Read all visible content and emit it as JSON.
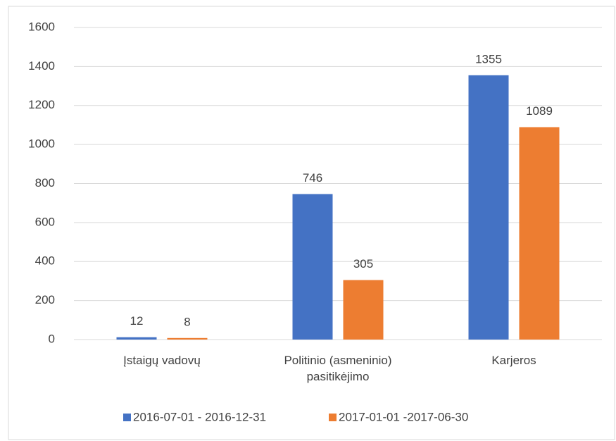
{
  "chart_data": {
    "type": "bar",
    "categories": [
      "Įstaigų vadovų",
      "Politinio (asmeninio) pasitikėjimo",
      "Karjeros"
    ],
    "series": [
      {
        "name": "2016-07-01 - 2016-12-31",
        "color": "#4472c4",
        "values": [
          12,
          746,
          1355
        ]
      },
      {
        "name": "2017-01-01 -2017-06-30",
        "color": "#ed7d31",
        "values": [
          8,
          305,
          1089
        ]
      }
    ],
    "ylim": [
      0,
      1600
    ],
    "yticks": [
      0,
      200,
      400,
      600,
      800,
      1000,
      1200,
      1400,
      1600
    ],
    "grid": true,
    "legend": "bottom"
  }
}
